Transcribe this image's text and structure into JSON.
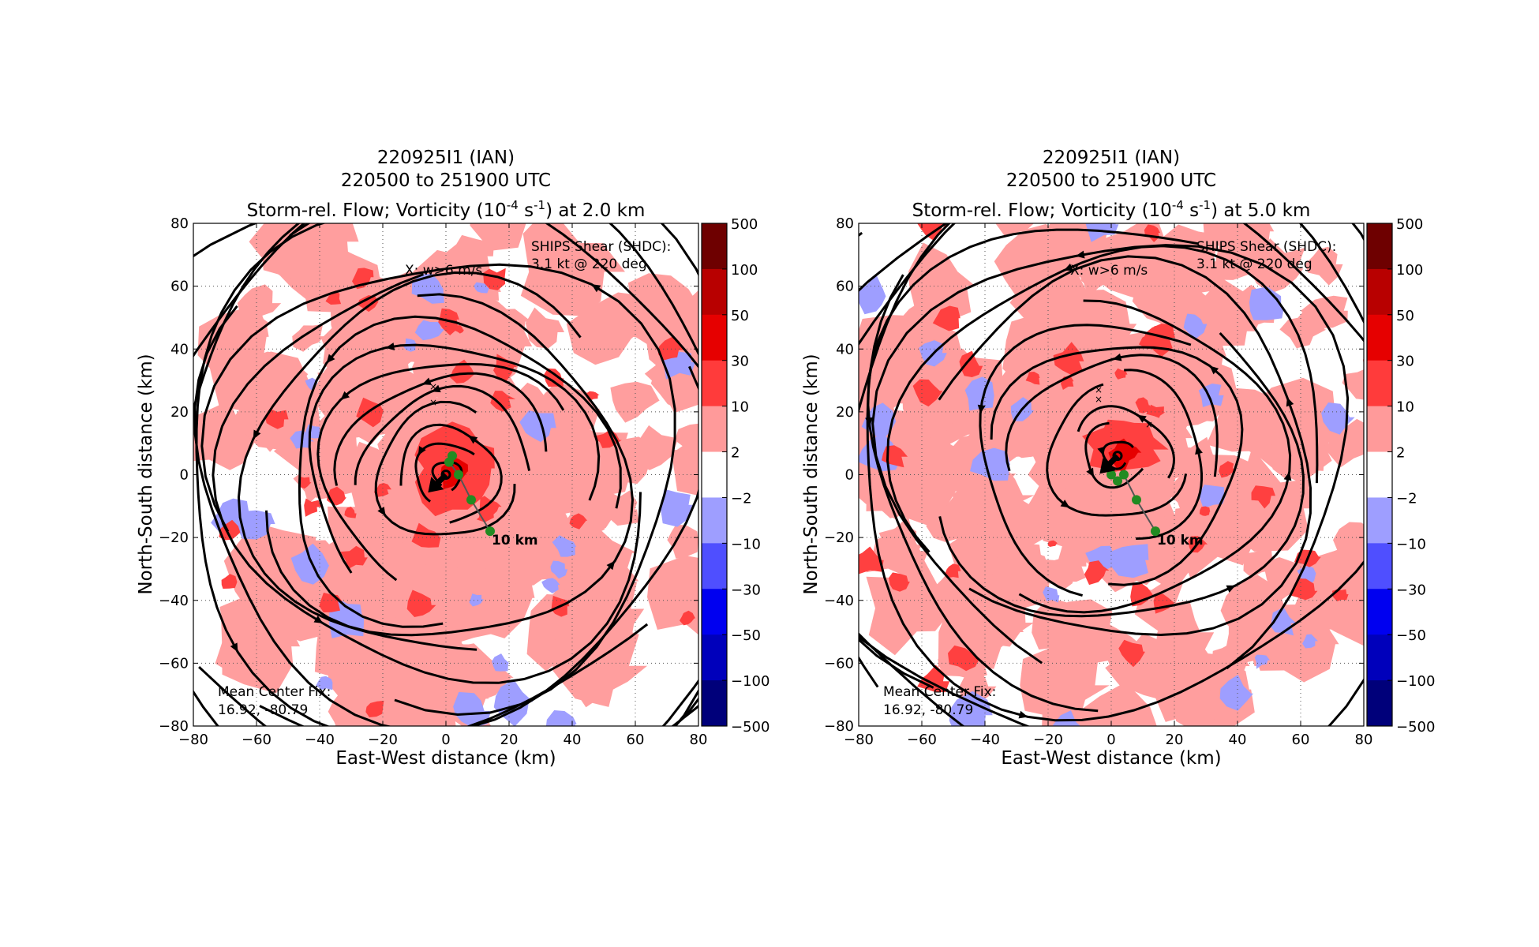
{
  "figure": {
    "panels": [
      {
        "title_lines": [
          "220925I1 (IAN)",
          "220500 to 251900 UTC"
        ],
        "title_prefix": "Storm-rel. Flow; Vorticity (10",
        "title_exp1": "-4",
        "title_mid": " s",
        "title_exp2": "-1",
        "title_suffix": ") at 2.0 km",
        "wmax_note": "X: w>6 m/s",
        "shear_line1": "SHIPS Shear (SHDC):",
        "shear_line2": "3.1 kt @ 220 deg",
        "center_fix_line1": "Mean Center Fix:",
        "center_fix_line2": "16.92, -80.79",
        "track_scale_label": "10 km"
      },
      {
        "title_lines": [
          "220925I1 (IAN)",
          "220500 to 251900 UTC"
        ],
        "title_prefix": "Storm-rel. Flow; Vorticity (10",
        "title_exp1": "-4",
        "title_mid": " s",
        "title_exp2": "-1",
        "title_suffix": ") at 5.0 km",
        "wmax_note": "X: w>6 m/s",
        "shear_line1": "SHIPS Shear (SHDC):",
        "shear_line2": "3.1 kt @ 220 deg",
        "center_fix_line1": "Mean Center Fix:",
        "center_fix_line2": "16.92, -80.79",
        "track_scale_label": "10 km"
      }
    ],
    "colorbar": {
      "levels": [
        "500",
        "100",
        "50",
        "30",
        "10",
        "2",
        "−2",
        "−10",
        "−30",
        "−50",
        "−100",
        "−500"
      ],
      "colors": [
        "#6e0000",
        "#b80000",
        "#e60000",
        "#ff3b3b",
        "#ff9a9a",
        "#ffffff",
        "#9e9eff",
        "#4f4fff",
        "#0000f0",
        "#0000bb",
        "#00007a"
      ]
    },
    "colors": {
      "vort_light_red": "#ff9e9e",
      "vort_mid_red": "#ff4040",
      "vort_strong_red": "#e60000",
      "vort_light_blue": "#9e9eff",
      "track_green": "#228b22"
    }
  },
  "chart_data": [
    {
      "type": "heatmap",
      "title": "220925I1 (IAN) / 220500 to 251900 UTC / Storm-rel. Flow; Vorticity (10^-4 s^-1) at 2.0 km",
      "xlabel": "East-West distance (km)",
      "ylabel": "North-South distance (km)",
      "xlim": [
        -80,
        80
      ],
      "ylim": [
        -80,
        80
      ],
      "xticks": [
        "−80",
        "−60",
        "−40",
        "−20",
        "0",
        "20",
        "40",
        "60",
        "80"
      ],
      "yticks": [
        "80",
        "60",
        "40",
        "20",
        "0",
        "−20",
        "−40",
        "−60",
        "−80"
      ],
      "grid": true,
      "vorticity_contour_levels": [
        -500,
        -100,
        -50,
        -30,
        -10,
        -2,
        2,
        10,
        30,
        50,
        100,
        500
      ],
      "storm_center_km": [
        0,
        0
      ],
      "center_track_points_km": [
        [
          2,
          6
        ],
        [
          1,
          4
        ],
        [
          4,
          0
        ],
        [
          8,
          -8
        ],
        [
          14,
          -18
        ]
      ],
      "w_max_points_km": [
        [
          -4,
          28
        ],
        [
          -4,
          23
        ]
      ],
      "shear_vector": {
        "speed_kt": 3.1,
        "direction_deg": 220
      },
      "flow": "cyclonic (counterclockwise) storm-relative streamlines"
    },
    {
      "type": "heatmap",
      "title": "220925I1 (IAN) / 220500 to 251900 UTC / Storm-rel. Flow; Vorticity (10^-4 s^-1) at 5.0 km",
      "xlabel": "East-West distance (km)",
      "ylabel": "North-South distance (km)",
      "xlim": [
        -80,
        80
      ],
      "ylim": [
        -80,
        80
      ],
      "xticks": [
        "−80",
        "−60",
        "−40",
        "−20",
        "0",
        "20",
        "40",
        "60",
        "80"
      ],
      "yticks": [
        "80",
        "60",
        "40",
        "20",
        "0",
        "−20",
        "−40",
        "−60",
        "−80"
      ],
      "grid": true,
      "vorticity_contour_levels": [
        -500,
        -100,
        -50,
        -30,
        -10,
        -2,
        2,
        10,
        30,
        50,
        100,
        500
      ],
      "storm_center_km": [
        2,
        6
      ],
      "center_track_points_km": [
        [
          0,
          0
        ],
        [
          2,
          -2
        ],
        [
          4,
          0
        ],
        [
          8,
          -8
        ],
        [
          14,
          -18
        ]
      ],
      "w_max_points_km": [
        [
          -4,
          27
        ],
        [
          -4,
          24
        ],
        [
          12,
          16
        ]
      ],
      "shear_vector": {
        "speed_kt": 3.1,
        "direction_deg": 220
      },
      "flow": "cyclonic (counterclockwise) storm-relative streamlines"
    }
  ]
}
